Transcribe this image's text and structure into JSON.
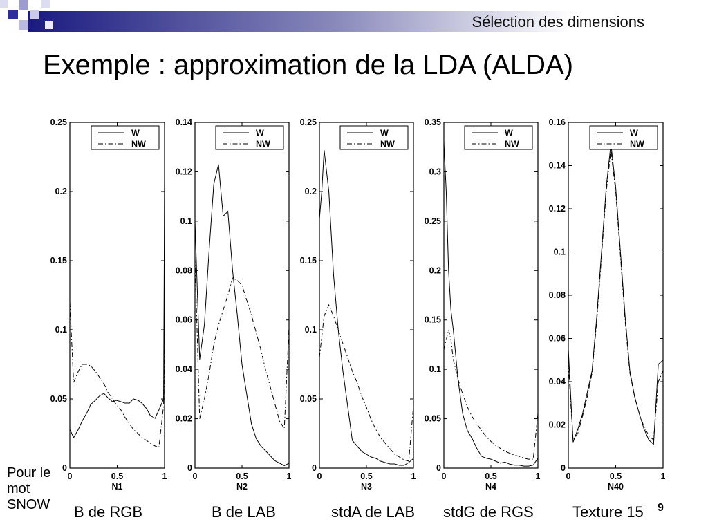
{
  "header": {
    "section_title": "Sélection des dimensions"
  },
  "slide": {
    "title": "Exemple : approximation de la LDA (ALDA)",
    "note": "Pour le mot SNOW",
    "page_number": "9"
  },
  "colors": {
    "header_band_start": "#1a1a80",
    "header_band_end": "#ffffff",
    "deco_square": "#3a3ab0"
  },
  "chart_data": [
    {
      "type": "line",
      "caption": "B de RGB",
      "xlabel": "N1",
      "ylabel": "",
      "xlim": [
        0,
        1
      ],
      "ylim": [
        0,
        0.25
      ],
      "xticks": [
        0,
        0.5,
        1
      ],
      "xtick_labels": [
        "0",
        "0.5",
        "1"
      ],
      "yticks": [
        0,
        0.05,
        0.1,
        0.15,
        0.2,
        0.25
      ],
      "ytick_labels": [
        "0",
        "0.05",
        "0.1",
        "0.15",
        "0.2",
        "0.25"
      ],
      "legend_position": "top-right",
      "series": [
        {
          "name": "W",
          "style": "solid",
          "x": [
            0,
            0.04,
            0.09,
            0.13,
            0.18,
            0.22,
            0.27,
            0.31,
            0.36,
            0.4,
            0.45,
            0.49,
            0.54,
            0.58,
            0.63,
            0.67,
            0.72,
            0.76,
            0.81,
            0.85,
            0.9,
            0.94,
            0.99,
            1
          ],
          "y": [
            0.028,
            0.022,
            0.028,
            0.034,
            0.04,
            0.046,
            0.049,
            0.052,
            0.054,
            0.051,
            0.048,
            0.049,
            0.048,
            0.047,
            0.047,
            0.05,
            0.049,
            0.047,
            0.043,
            0.038,
            0.036,
            0.042,
            0.05,
            0.21
          ]
        },
        {
          "name": "NW",
          "style": "dash-dot",
          "x": [
            0,
            0.04,
            0.09,
            0.13,
            0.18,
            0.22,
            0.27,
            0.31,
            0.36,
            0.4,
            0.45,
            0.49,
            0.54,
            0.58,
            0.63,
            0.67,
            0.72,
            0.76,
            0.81,
            0.85,
            0.9,
            0.94,
            0.99,
            1
          ],
          "y": [
            0.12,
            0.062,
            0.07,
            0.075,
            0.075,
            0.074,
            0.07,
            0.066,
            0.061,
            0.055,
            0.05,
            0.046,
            0.042,
            0.037,
            0.032,
            0.028,
            0.025,
            0.022,
            0.02,
            0.018,
            0.016,
            0.015,
            0.045,
            0.13
          ]
        }
      ]
    },
    {
      "type": "line",
      "caption": "B de LAB",
      "xlabel": "N2",
      "ylabel": "",
      "xlim": [
        0,
        1
      ],
      "ylim": [
        0,
        0.14
      ],
      "xticks": [
        0,
        0.5,
        1
      ],
      "xtick_labels": [
        "0",
        "0.5",
        "1"
      ],
      "yticks": [
        0,
        0.02,
        0.04,
        0.06,
        0.08,
        0.1,
        0.12,
        0.14
      ],
      "ytick_labels": [
        "0",
        "0.02",
        "0.04",
        "0.06",
        "0.08",
        "0.1",
        "0.12",
        "0.14"
      ],
      "legend_position": "top-right",
      "series": [
        {
          "name": "W",
          "style": "solid",
          "x": [
            0,
            0.05,
            0.1,
            0.15,
            0.2,
            0.25,
            0.3,
            0.35,
            0.4,
            0.45,
            0.5,
            0.55,
            0.6,
            0.65,
            0.7,
            0.75,
            0.8,
            0.85,
            0.9,
            0.95,
            1
          ],
          "y": [
            0.1,
            0.044,
            0.058,
            0.088,
            0.115,
            0.123,
            0.102,
            0.104,
            0.08,
            0.062,
            0.042,
            0.03,
            0.018,
            0.012,
            0.009,
            0.007,
            0.005,
            0.003,
            0.002,
            0.001,
            0.002
          ]
        },
        {
          "name": "NW",
          "style": "dash-dot",
          "x": [
            0,
            0.05,
            0.1,
            0.15,
            0.2,
            0.25,
            0.3,
            0.35,
            0.4,
            0.45,
            0.5,
            0.55,
            0.6,
            0.65,
            0.7,
            0.75,
            0.8,
            0.85,
            0.9,
            0.95,
            1
          ],
          "y": [
            0.085,
            0.02,
            0.028,
            0.038,
            0.05,
            0.058,
            0.064,
            0.07,
            0.077,
            0.076,
            0.074,
            0.068,
            0.062,
            0.055,
            0.048,
            0.04,
            0.033,
            0.026,
            0.019,
            0.016,
            0.057
          ]
        }
      ]
    },
    {
      "type": "line",
      "caption": "stdA de LAB",
      "xlabel": "N3",
      "ylabel": "",
      "xlim": [
        0,
        1
      ],
      "ylim": [
        0,
        0.25
      ],
      "xticks": [
        0,
        0.5,
        1
      ],
      "xtick_labels": [
        "0",
        "0.5",
        "1"
      ],
      "yticks": [
        0,
        0.05,
        0.1,
        0.15,
        0.2,
        0.25
      ],
      "ytick_labels": [
        "0",
        "0.05",
        "0.1",
        "0.15",
        "0.2",
        "0.25"
      ],
      "legend_position": "top-right",
      "series": [
        {
          "name": "W",
          "style": "solid",
          "x": [
            0,
            0.025,
            0.05,
            0.1,
            0.15,
            0.2,
            0.25,
            0.3,
            0.35,
            0.4,
            0.45,
            0.5,
            0.55,
            0.6,
            0.65,
            0.7,
            0.75,
            0.8,
            0.85,
            0.9,
            0.95,
            1
          ],
          "y": [
            0.18,
            0.2,
            0.23,
            0.2,
            0.14,
            0.1,
            0.07,
            0.045,
            0.02,
            0.016,
            0.012,
            0.01,
            0.008,
            0.007,
            0.005,
            0.004,
            0.003,
            0.003,
            0.002,
            0.002,
            0.004,
            0.007
          ]
        },
        {
          "name": "NW",
          "style": "dash-dot",
          "x": [
            0,
            0.025,
            0.05,
            0.1,
            0.15,
            0.2,
            0.25,
            0.3,
            0.35,
            0.4,
            0.45,
            0.5,
            0.55,
            0.6,
            0.65,
            0.7,
            0.75,
            0.8,
            0.85,
            0.9,
            0.95,
            1
          ],
          "y": [
            0.08,
            0.095,
            0.11,
            0.118,
            0.11,
            0.1,
            0.09,
            0.08,
            0.07,
            0.062,
            0.052,
            0.044,
            0.035,
            0.028,
            0.022,
            0.018,
            0.014,
            0.01,
            0.008,
            0.006,
            0.005,
            0.045
          ]
        }
      ]
    },
    {
      "type": "line",
      "caption": "stdG de RGS",
      "xlabel": "N4",
      "ylabel": "",
      "xlim": [
        0,
        1
      ],
      "ylim": [
        0,
        0.35
      ],
      "xticks": [
        0,
        0.5,
        1
      ],
      "xtick_labels": [
        "0",
        "0.5",
        "1"
      ],
      "yticks": [
        0,
        0.05,
        0.1,
        0.15,
        0.2,
        0.25,
        0.3,
        0.35
      ],
      "ytick_labels": [
        "0",
        "0.05",
        "0.1",
        "0.15",
        "0.2",
        "0.25",
        "0.3",
        "0.35"
      ],
      "legend_position": "top-right",
      "series": [
        {
          "name": "W",
          "style": "solid",
          "x": [
            0,
            0.025,
            0.05,
            0.075,
            0.1,
            0.15,
            0.2,
            0.25,
            0.3,
            0.35,
            0.4,
            0.45,
            0.5,
            0.55,
            0.6,
            0.65,
            0.7,
            0.75,
            0.8,
            0.85,
            0.9,
            0.95,
            1
          ],
          "y": [
            0.33,
            0.28,
            0.2,
            0.16,
            0.14,
            0.09,
            0.055,
            0.038,
            0.03,
            0.02,
            0.012,
            0.01,
            0.009,
            0.007,
            0.005,
            0.006,
            0.004,
            0.003,
            0.003,
            0.002,
            0.002,
            0.003,
            0.01
          ]
        },
        {
          "name": "NW",
          "style": "dash-dot",
          "x": [
            0,
            0.025,
            0.05,
            0.075,
            0.1,
            0.15,
            0.2,
            0.25,
            0.3,
            0.35,
            0.4,
            0.45,
            0.5,
            0.55,
            0.6,
            0.65,
            0.7,
            0.75,
            0.8,
            0.85,
            0.9,
            0.95,
            1
          ],
          "y": [
            0.12,
            0.13,
            0.14,
            0.13,
            0.11,
            0.09,
            0.075,
            0.062,
            0.052,
            0.045,
            0.038,
            0.032,
            0.027,
            0.023,
            0.02,
            0.017,
            0.015,
            0.013,
            0.012,
            0.01,
            0.009,
            0.009,
            0.055
          ]
        }
      ]
    },
    {
      "type": "line",
      "caption": "Texture 15",
      "xlabel": "N40",
      "ylabel": "",
      "xlim": [
        0,
        1
      ],
      "ylim": [
        0,
        0.16
      ],
      "xticks": [
        0,
        0.5,
        1
      ],
      "xtick_labels": [
        "0",
        "0.5",
        "1"
      ],
      "yticks": [
        0,
        0.02,
        0.04,
        0.06,
        0.08,
        0.1,
        0.12,
        0.14,
        0.16
      ],
      "ytick_labels": [
        "0",
        "0.02",
        "0.04",
        "0.06",
        "0.08",
        "0.1",
        "0.12",
        "0.14",
        "0.16"
      ],
      "legend_position": "top-right",
      "series": [
        {
          "name": "W",
          "style": "solid",
          "x": [
            0,
            0.05,
            0.1,
            0.15,
            0.2,
            0.25,
            0.3,
            0.35,
            0.4,
            0.45,
            0.5,
            0.55,
            0.6,
            0.65,
            0.7,
            0.75,
            0.8,
            0.85,
            0.9,
            0.95,
            1
          ],
          "y": [
            0.055,
            0.012,
            0.018,
            0.025,
            0.035,
            0.045,
            0.07,
            0.1,
            0.13,
            0.15,
            0.13,
            0.1,
            0.07,
            0.045,
            0.033,
            0.025,
            0.018,
            0.013,
            0.011,
            0.048,
            0.05
          ]
        },
        {
          "name": "NW",
          "style": "dash-dot",
          "x": [
            0,
            0.05,
            0.1,
            0.15,
            0.2,
            0.25,
            0.3,
            0.35,
            0.4,
            0.45,
            0.5,
            0.55,
            0.6,
            0.65,
            0.7,
            0.75,
            0.8,
            0.85,
            0.9,
            0.95,
            1
          ],
          "y": [
            0.048,
            0.013,
            0.016,
            0.024,
            0.033,
            0.044,
            0.068,
            0.098,
            0.128,
            0.147,
            0.128,
            0.098,
            0.068,
            0.044,
            0.033,
            0.025,
            0.019,
            0.015,
            0.013,
            0.04,
            0.045
          ]
        }
      ]
    }
  ]
}
